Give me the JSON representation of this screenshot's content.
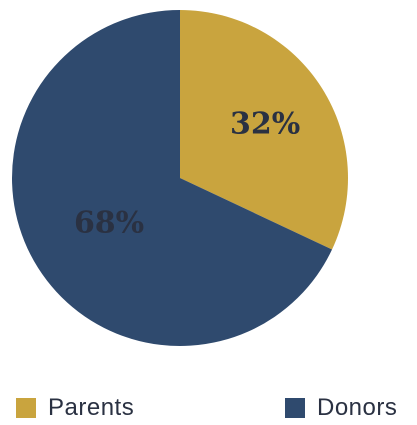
{
  "chart_data": {
    "type": "pie",
    "slices": [
      {
        "label": "Parents",
        "value": 32,
        "display": "32%",
        "color": "#c9a43e"
      },
      {
        "label": "Donors",
        "value": 68,
        "display": "68%",
        "color": "#2f4a6e"
      }
    ],
    "start_angle_deg": 0,
    "direction": "clockwise",
    "legend_position": "bottom",
    "title": ""
  }
}
